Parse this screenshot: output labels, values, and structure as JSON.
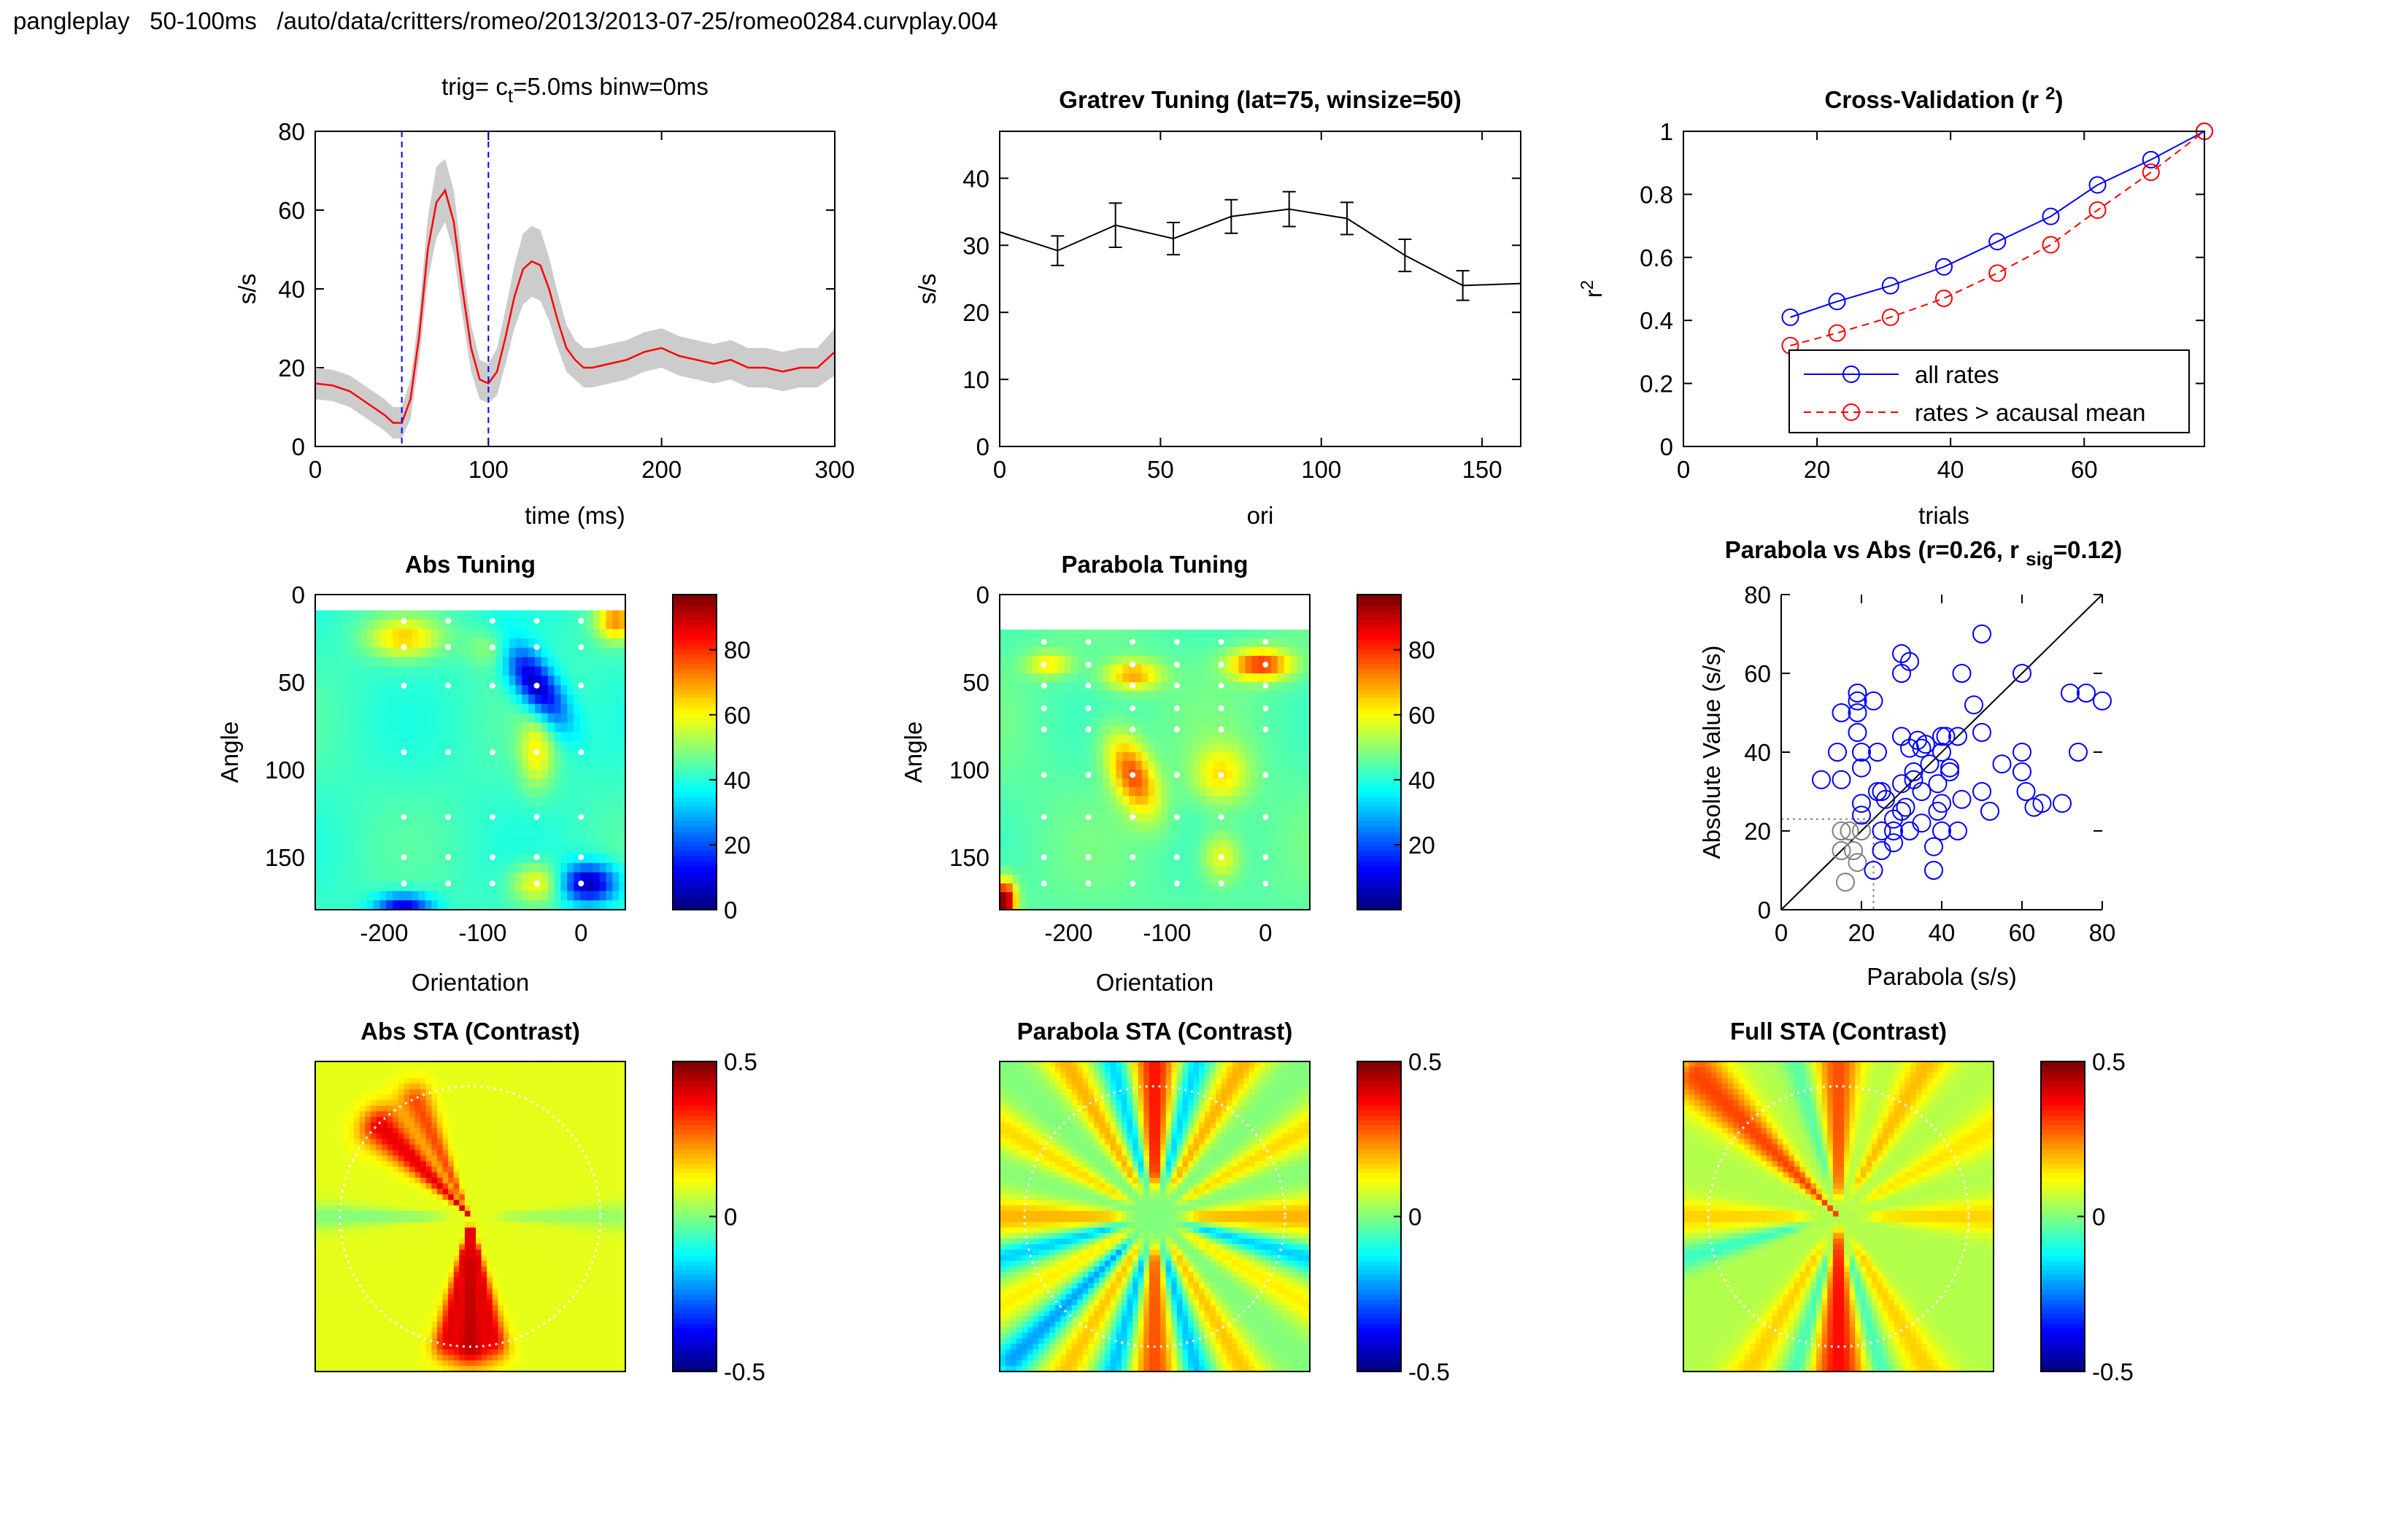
{
  "header": {
    "app": "pangleplay",
    "window": "50-100ms",
    "path": "/auto/data/critters/romeo/2013/2013-07-25/romeo0284.curvplay.004"
  },
  "colors": {
    "red": "#ff0000",
    "blue": "#0000ff",
    "band": "#cccccc",
    "grey": "#808080"
  },
  "chart_data": [
    {
      "id": "psth",
      "type": "line",
      "title_parts": [
        "trig=",
        "c",
        "t",
        "=5.0ms binw=0ms"
      ],
      "xlabel": "time (ms)",
      "ylabel": "s/s",
      "xlim": [
        0,
        300
      ],
      "ylim": [
        0,
        80
      ],
      "xticks": [
        0,
        100,
        200,
        300
      ],
      "yticks": [
        0,
        20,
        40,
        60,
        80
      ],
      "x": [
        0,
        10,
        20,
        30,
        40,
        45,
        50,
        55,
        60,
        65,
        70,
        75,
        80,
        85,
        90,
        95,
        100,
        105,
        110,
        115,
        120,
        125,
        130,
        135,
        140,
        145,
        150,
        155,
        160,
        170,
        180,
        190,
        200,
        210,
        220,
        230,
        240,
        250,
        260,
        270,
        280,
        290,
        300
      ],
      "series": [
        {
          "values": [
            16,
            15.5,
            14,
            11,
            8,
            6,
            6,
            12,
            28,
            50,
            62,
            65,
            57,
            40,
            25,
            17,
            16,
            19,
            28,
            38,
            45,
            47,
            46,
            40,
            32,
            25,
            22,
            20,
            20,
            21,
            22,
            24,
            25,
            23,
            22,
            21,
            22,
            20,
            20,
            19,
            20,
            20,
            24
          ]
        }
      ],
      "band_lower": [
        12,
        11.5,
        10,
        7,
        4,
        2,
        2,
        7,
        22,
        42,
        53,
        57,
        49,
        33,
        19,
        12,
        11,
        13,
        21,
        30,
        36,
        38,
        37,
        32,
        25,
        19,
        17,
        15,
        15,
        16,
        17,
        19,
        20,
        18,
        17,
        16,
        17,
        15,
        15,
        14,
        15,
        15,
        18
      ],
      "band_upper": [
        20,
        19.5,
        18,
        15,
        12,
        10,
        10,
        17,
        34,
        58,
        71,
        73,
        65,
        47,
        31,
        22,
        21,
        25,
        35,
        46,
        54,
        56,
        55,
        48,
        39,
        31,
        27,
        25,
        25,
        26,
        27,
        29,
        30,
        28,
        27,
        26,
        27,
        25,
        25,
        24,
        25,
        25,
        30
      ],
      "vlines": [
        50,
        100
      ]
    },
    {
      "id": "gratrev",
      "type": "line",
      "title": "Gratrev Tuning (lat=75, winsize=50)",
      "xlabel": "ori",
      "ylabel": "s/s",
      "xlim": [
        0,
        162
      ],
      "ylim": [
        0,
        47
      ],
      "xticks": [
        0,
        50,
        100,
        150
      ],
      "yticks": [
        0,
        10,
        20,
        30,
        40
      ],
      "x": [
        0,
        18,
        36,
        54,
        72,
        90,
        108,
        126,
        144,
        162
      ],
      "series": [
        {
          "values": [
            32,
            29.2,
            33,
            31,
            34.3,
            35.4,
            34,
            28.5,
            24,
            24.3
          ]
        }
      ],
      "errors": [
        null,
        2.2,
        3.3,
        2.4,
        2.5,
        2.6,
        2.4,
        2.4,
        2.2,
        null
      ]
    },
    {
      "id": "crossval",
      "type": "line",
      "title": "Cross-Validation (r 2)",
      "title_parts": [
        "Cross-Validation (r",
        "2",
        ")"
      ],
      "xlabel": "trials",
      "ylabel": "r2",
      "ylabel_parts": [
        "r",
        "2"
      ],
      "xlim": [
        0,
        78
      ],
      "ylim": [
        0,
        1
      ],
      "xticks": [
        0,
        20,
        40,
        60
      ],
      "yticks": [
        0,
        0.2,
        0.4,
        0.6,
        0.8,
        1
      ],
      "x": [
        16,
        23,
        31,
        39,
        47,
        55,
        62,
        70,
        78
      ],
      "series": [
        {
          "name": "all rates",
          "color": "#0000ff",
          "dash": false,
          "values": [
            0.41,
            0.46,
            0.51,
            0.57,
            0.65,
            0.73,
            0.83,
            0.91,
            1.0
          ]
        },
        {
          "name": "rates > acausal mean",
          "color": "#ff0000",
          "dash": true,
          "values": [
            0.32,
            0.36,
            0.41,
            0.47,
            0.55,
            0.64,
            0.75,
            0.87,
            1.0
          ]
        }
      ],
      "legend": "bottom-right"
    },
    {
      "id": "abs-tuning",
      "type": "heatmap",
      "title": "Abs Tuning",
      "xlabel": "Orientation",
      "ylabel": "Angle",
      "xlim": [
        -270,
        45
      ],
      "ylim": [
        0,
        180
      ],
      "xticks": [
        -200,
        -100,
        0
      ],
      "yticks": [
        0,
        50,
        100,
        150
      ],
      "grid_x": [
        -180,
        -135,
        -90,
        -45,
        0
      ],
      "grid_y": [
        15,
        30,
        52,
        90,
        127,
        150,
        165
      ],
      "field_top": 9,
      "base": 42,
      "blobs": [
        {
          "x": -45,
          "y": 52,
          "v": -38,
          "sx": 16,
          "sy": 12,
          "r": 0.7
        },
        {
          "x": 8,
          "y": 165,
          "v": -38,
          "sx": 20,
          "sy": 8,
          "r": 0
        },
        {
          "x": -180,
          "y": 178,
          "v": -32,
          "sx": 20,
          "sy": 5,
          "r": 0
        },
        {
          "x": -180,
          "y": 25,
          "v": 22,
          "sx": 26,
          "sy": 8,
          "r": 0
        },
        {
          "x": 35,
          "y": 15,
          "v": 28,
          "sx": 14,
          "sy": 8,
          "r": 0
        },
        {
          "x": -45,
          "y": 90,
          "v": 18,
          "sx": 12,
          "sy": 15,
          "r": 0
        },
        {
          "x": -45,
          "y": 165,
          "v": 20,
          "sx": 18,
          "sy": 8,
          "r": 0
        },
        {
          "x": -90,
          "y": 30,
          "v": 10,
          "sx": 18,
          "sy": 8,
          "r": 0
        }
      ],
      "colorbar": {
        "min": 0,
        "max": 97,
        "ticks": [
          0,
          20,
          40,
          60,
          80
        ]
      }
    },
    {
      "id": "parabola-tuning",
      "type": "heatmap",
      "title": "Parabola Tuning",
      "xlabel": "Orientation",
      "ylabel": "Angle",
      "xlim": [
        -270,
        45
      ],
      "ylim": [
        0,
        180
      ],
      "xticks": [
        -200,
        -100,
        0
      ],
      "yticks": [
        0,
        50,
        100,
        150
      ],
      "grid_x": [
        -225,
        -180,
        -135,
        -90,
        -45,
        0
      ],
      "grid_y": [
        27,
        40,
        52,
        65,
        77,
        103,
        127,
        150,
        165
      ],
      "field_top": 20,
      "base": 45,
      "blobs": [
        {
          "x": -135,
          "y": 103,
          "v": 33,
          "sx": 16,
          "sy": 14,
          "r": 0.5
        },
        {
          "x": -5,
          "y": 40,
          "v": 36,
          "sx": 22,
          "sy": 6,
          "r": 0
        },
        {
          "x": -135,
          "y": 46,
          "v": 25,
          "sx": 20,
          "sy": 6,
          "r": 0
        },
        {
          "x": -220,
          "y": 40,
          "v": 18,
          "sx": 16,
          "sy": 5,
          "r": 0
        },
        {
          "x": -45,
          "y": 103,
          "v": 18,
          "sx": 20,
          "sy": 12,
          "r": 0
        },
        {
          "x": -45,
          "y": 150,
          "v": 16,
          "sx": 14,
          "sy": 10,
          "r": 0
        },
        {
          "x": -265,
          "y": 175,
          "v": 55,
          "sx": 8,
          "sy": 8,
          "r": 0
        }
      ],
      "colorbar": {
        "min": 0,
        "max": 97,
        "ticks": [
          20,
          40,
          60,
          80
        ]
      }
    },
    {
      "id": "parabola-vs-abs",
      "type": "scatter",
      "title_parts": [
        "Parabola vs Abs (r=0.26, r",
        "sig",
        "=0.12)"
      ],
      "xlabel": "Parabola (s/s)",
      "ylabel": "Absolute Value (s/s)",
      "xlim": [
        0,
        80
      ],
      "ylim": [
        0,
        80
      ],
      "xticks": [
        0,
        20,
        40,
        60,
        80
      ],
      "yticks": [
        0,
        20,
        40,
        60,
        80
      ],
      "threshold": 23,
      "points_blue": [
        [
          10,
          33
        ],
        [
          14,
          40
        ],
        [
          15,
          50
        ],
        [
          15,
          33
        ],
        [
          19,
          55
        ],
        [
          19,
          53
        ],
        [
          19,
          50
        ],
        [
          19,
          45
        ],
        [
          20,
          40
        ],
        [
          20,
          36
        ],
        [
          20,
          27
        ],
        [
          20,
          24
        ],
        [
          23,
          53
        ],
        [
          24,
          40
        ],
        [
          24,
          30
        ],
        [
          25,
          30
        ],
        [
          25,
          20
        ],
        [
          26,
          28
        ],
        [
          23,
          10
        ],
        [
          28,
          17
        ],
        [
          28,
          20
        ],
        [
          30,
          25
        ],
        [
          30,
          32
        ],
        [
          30,
          44
        ],
        [
          30,
          60
        ],
        [
          30,
          65
        ],
        [
          31,
          26
        ],
        [
          32,
          63
        ],
        [
          32,
          41
        ],
        [
          33,
          35
        ],
        [
          33,
          33
        ],
        [
          34,
          43
        ],
        [
          35,
          30
        ],
        [
          35,
          41
        ],
        [
          37,
          37
        ],
        [
          36,
          42
        ],
        [
          38,
          16
        ],
        [
          38,
          10
        ],
        [
          39,
          25
        ],
        [
          40,
          20
        ],
        [
          40,
          27
        ],
        [
          40,
          40
        ],
        [
          40,
          44
        ],
        [
          41,
          44
        ],
        [
          42,
          35
        ],
        [
          44,
          44
        ],
        [
          44,
          20
        ],
        [
          45,
          60
        ],
        [
          50,
          70
        ],
        [
          48,
          52
        ],
        [
          50,
          45
        ],
        [
          50,
          30
        ],
        [
          55,
          37
        ],
        [
          60,
          60
        ],
        [
          60,
          40
        ],
        [
          60,
          35
        ],
        [
          61,
          30
        ],
        [
          63,
          26
        ],
        [
          65,
          27
        ],
        [
          70,
          27
        ],
        [
          72,
          55
        ],
        [
          74,
          40
        ],
        [
          76,
          55
        ],
        [
          80,
          53
        ],
        [
          25,
          15
        ],
        [
          42,
          36
        ],
        [
          35,
          22
        ],
        [
          32,
          20
        ],
        [
          28,
          23
        ],
        [
          45,
          28
        ],
        [
          52,
          25
        ],
        [
          39,
          32
        ]
      ],
      "points_grey": [
        [
          15,
          20
        ],
        [
          17,
          20
        ],
        [
          15,
          15
        ],
        [
          18,
          15
        ],
        [
          16,
          7
        ],
        [
          20,
          20
        ],
        [
          19,
          12
        ]
      ]
    },
    {
      "id": "abs-sta",
      "type": "heatmap",
      "title": "Abs STA (Contrast)",
      "base": 0.1,
      "rays": [
        {
          "a": -135,
          "w": 0.055,
          "amp": 0.3,
          "r0": 0.0,
          "r1": 0.82
        },
        {
          "a": -115,
          "w": 0.04,
          "amp": 0.2,
          "r0": 0.0,
          "r1": 0.82
        },
        {
          "a": 90,
          "w": 0.06,
          "amp": 0.34,
          "r0": 0.05,
          "r1": 0.85
        },
        {
          "a": 78,
          "w": 0.03,
          "amp": 0.2,
          "r0": 0.05,
          "r1": 0.8
        },
        {
          "a": 102,
          "w": 0.03,
          "amp": 0.2,
          "r0": 0.05,
          "r1": 0.8
        },
        {
          "a": 180,
          "w": 0.03,
          "amp": -0.1,
          "r0": 0.1,
          "r1": 0.95
        },
        {
          "a": 0,
          "w": 0.03,
          "amp": -0.08,
          "r0": 0.1,
          "r1": 0.95
        }
      ],
      "colorbar": {
        "min": -0.5,
        "max": 0.5,
        "ticks": [
          -0.5,
          0,
          0.5
        ]
      }
    },
    {
      "id": "parabola-sta",
      "type": "heatmap",
      "title": "Parabola STA (Contrast)",
      "base": 0.0,
      "rays": [
        {
          "a": -90,
          "w": 0.05,
          "amp": 0.36,
          "r0": 0.3,
          "r1": 1.3
        },
        {
          "a": 90,
          "w": 0.05,
          "amp": 0.3,
          "r0": 0.3,
          "r1": 1.3
        },
        {
          "a": -60,
          "w": 0.04,
          "amp": 0.2,
          "r0": 0.3,
          "r1": 1.3
        },
        {
          "a": -120,
          "w": 0.04,
          "amp": 0.2,
          "r0": 0.3,
          "r1": 1.3
        },
        {
          "a": 60,
          "w": 0.04,
          "amp": 0.18,
          "r0": 0.3,
          "r1": 1.3
        },
        {
          "a": 120,
          "w": 0.04,
          "amp": 0.18,
          "r0": 0.3,
          "r1": 1.3
        },
        {
          "a": -30,
          "w": 0.04,
          "amp": 0.16,
          "r0": 0.3,
          "r1": 1.3
        },
        {
          "a": -150,
          "w": 0.04,
          "amp": 0.16,
          "r0": 0.3,
          "r1": 1.3
        },
        {
          "a": 30,
          "w": 0.04,
          "amp": 0.14,
          "r0": 0.3,
          "r1": 1.3
        },
        {
          "a": 150,
          "w": 0.04,
          "amp": 0.14,
          "r0": 0.3,
          "r1": 1.3
        },
        {
          "a": 0,
          "w": 0.05,
          "amp": 0.2,
          "r0": 0.3,
          "r1": 1.3
        },
        {
          "a": 180,
          "w": 0.05,
          "amp": 0.2,
          "r0": 0.3,
          "r1": 1.3
        },
        {
          "a": -75,
          "w": 0.03,
          "amp": -0.18,
          "r0": 0.35,
          "r1": 1.3
        },
        {
          "a": -105,
          "w": 0.03,
          "amp": -0.18,
          "r0": 0.35,
          "r1": 1.3
        },
        {
          "a": 75,
          "w": 0.03,
          "amp": -0.2,
          "r0": 0.35,
          "r1": 1.3
        },
        {
          "a": 105,
          "w": 0.03,
          "amp": -0.2,
          "r0": 0.35,
          "r1": 1.3
        },
        {
          "a": 15,
          "w": 0.03,
          "amp": -0.18,
          "r0": 0.35,
          "r1": 1.3
        },
        {
          "a": 165,
          "w": 0.03,
          "amp": -0.18,
          "r0": 0.35,
          "r1": 1.3
        },
        {
          "a": 135,
          "w": 0.03,
          "amp": -0.22,
          "r0": 0.35,
          "r1": 1.3
        }
      ],
      "colorbar": {
        "min": -0.5,
        "max": 0.5,
        "ticks": [
          -0.5,
          0,
          0.5
        ]
      }
    },
    {
      "id": "full-sta",
      "type": "heatmap",
      "title": "Full STA (Contrast)",
      "base": 0.05,
      "rays": [
        {
          "a": -135,
          "w": 0.05,
          "amp": 0.26,
          "r0": 0.0,
          "r1": 1.3
        },
        {
          "a": -90,
          "w": 0.05,
          "amp": 0.25,
          "r0": 0.2,
          "r1": 1.3
        },
        {
          "a": 90,
          "w": 0.06,
          "amp": 0.32,
          "r0": 0.05,
          "r1": 1.3
        },
        {
          "a": -60,
          "w": 0.04,
          "amp": 0.14,
          "r0": 0.3,
          "r1": 1.3
        },
        {
          "a": 60,
          "w": 0.04,
          "amp": 0.12,
          "r0": 0.3,
          "r1": 1.3
        },
        {
          "a": 120,
          "w": 0.04,
          "amp": 0.12,
          "r0": 0.3,
          "r1": 1.3
        },
        {
          "a": -30,
          "w": 0.04,
          "amp": 0.1,
          "r0": 0.3,
          "r1": 1.3
        },
        {
          "a": 0,
          "w": 0.04,
          "amp": 0.12,
          "r0": 0.3,
          "r1": 1.3
        },
        {
          "a": 180,
          "w": 0.04,
          "amp": 0.12,
          "r0": 0.3,
          "r1": 1.3
        },
        {
          "a": 75,
          "w": 0.03,
          "amp": -0.14,
          "r0": 0.35,
          "r1": 1.3
        },
        {
          "a": 105,
          "w": 0.03,
          "amp": -0.14,
          "r0": 0.35,
          "r1": 1.3
        },
        {
          "a": -105,
          "w": 0.03,
          "amp": -0.1,
          "r0": 0.35,
          "r1": 1.3
        },
        {
          "a": 165,
          "w": 0.03,
          "amp": -0.12,
          "r0": 0.35,
          "r1": 1.3
        }
      ],
      "colorbar": {
        "min": -0.5,
        "max": 0.5,
        "ticks": [
          -0.5,
          0,
          0.5
        ]
      }
    }
  ]
}
